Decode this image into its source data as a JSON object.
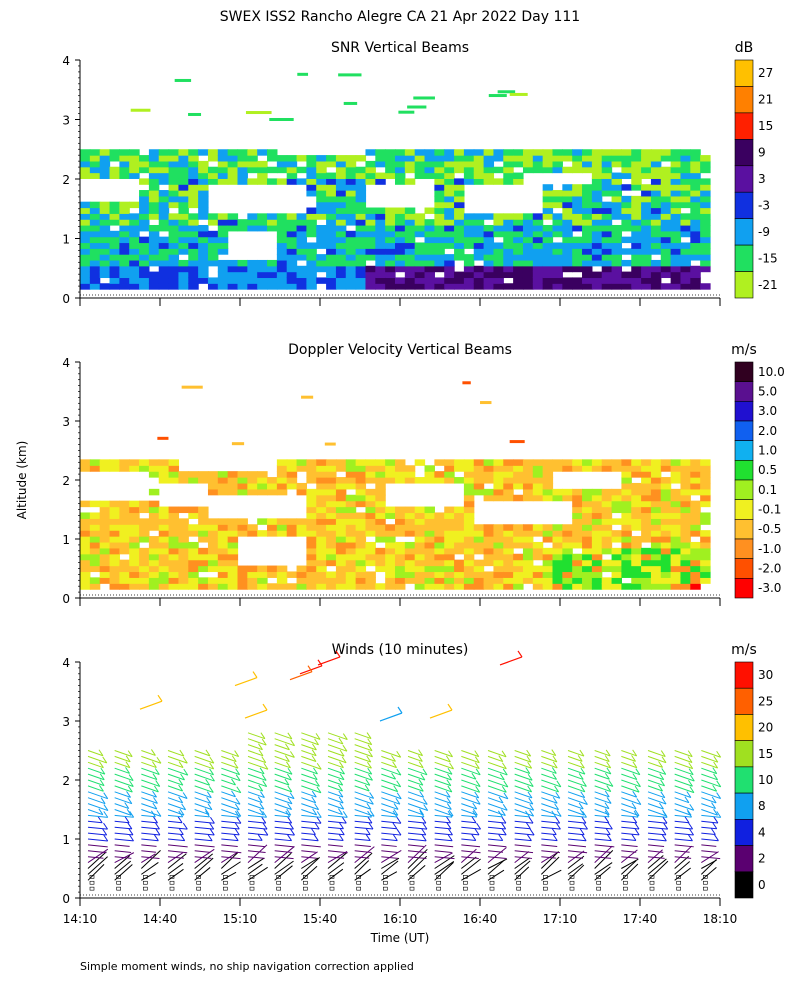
{
  "title": "SWEX ISS2 Rancho Alegre CA  21 Apr 2022 Day 111",
  "ylabel": "Altitude (km)",
  "xlabel": "Time (UT)",
  "footnote": "Simple moment winds, no ship navigation correction applied",
  "time_ticks": [
    "14:10",
    "14:40",
    "15:10",
    "15:40",
    "16:10",
    "16:40",
    "17:10",
    "17:40",
    "18:10"
  ],
  "panels": [
    {
      "title": "SNR Vertical Beams",
      "unit": "dB",
      "colorbar_labels": [
        "27",
        "21",
        "15",
        "9",
        "3",
        "-3",
        "-9",
        "-15",
        "-21"
      ],
      "colorbar_colors": [
        "#ffc000",
        "#ff8000",
        "#ff2000",
        "#3a0060",
        "#5a10a0",
        "#1030e0",
        "#10a0f0",
        "#20e060",
        "#b0f020"
      ]
    },
    {
      "title": "Doppler Velocity Vertical Beams",
      "unit": "m/s",
      "colorbar_labels": [
        "10.0",
        "5.0",
        "3.0",
        "2.0",
        "1.0",
        "0.5",
        "0.1",
        "-0.1",
        "-0.5",
        "-1.0",
        "-2.0",
        "-3.0"
      ],
      "colorbar_colors": [
        "#300020",
        "#5a1090",
        "#2010d0",
        "#1060f0",
        "#10b0f0",
        "#20e030",
        "#a0f020",
        "#f0f020",
        "#ffc030",
        "#ff9020",
        "#ff5000",
        "#ff0000"
      ]
    },
    {
      "title": "Winds (10 minutes)",
      "unit": "m/s",
      "colorbar_labels": [
        "30",
        "25",
        "20",
        "15",
        "10",
        "8",
        "4",
        "2",
        "0"
      ],
      "colorbar_colors": [
        "#ff1000",
        "#ff6000",
        "#ffc000",
        "#a0e020",
        "#20e070",
        "#10a0f0",
        "#1020e0",
        "#5a0070",
        "#000000"
      ]
    }
  ],
  "chart_data": [
    {
      "type": "heatmap",
      "title": "SNR Vertical Beams",
      "xlabel": "Time (UT)",
      "ylabel": "Altitude (km)",
      "x_range": [
        "14:10",
        "18:10"
      ],
      "ylim": [
        0,
        4
      ],
      "yticks": [
        0,
        1,
        2,
        3,
        4
      ],
      "colorbar_unit": "dB",
      "colorbar_levels": [
        -21,
        -15,
        -9,
        -3,
        3,
        9,
        15,
        21,
        27
      ],
      "data_top_km": 2.5
    },
    {
      "type": "heatmap",
      "title": "Doppler Velocity Vertical Beams",
      "xlabel": "Time (UT)",
      "ylabel": "Altitude (km)",
      "x_range": [
        "14:10",
        "18:10"
      ],
      "ylim": [
        0,
        4
      ],
      "yticks": [
        0,
        1,
        2,
        3,
        4
      ],
      "colorbar_unit": "m/s",
      "colorbar_levels": [
        -3.0,
        -2.0,
        -1.0,
        -0.5,
        -0.1,
        0.1,
        0.5,
        1.0,
        2.0,
        3.0,
        5.0,
        10.0
      ],
      "data_top_km": 2.4
    },
    {
      "type": "scatter",
      "title": "Winds (10 minutes)",
      "xlabel": "Time (UT)",
      "ylabel": "Altitude (km)",
      "x_range": [
        "14:10",
        "18:10"
      ],
      "ylim": [
        0,
        4
      ],
      "yticks": [
        0,
        1,
        2,
        3,
        4
      ],
      "colorbar_unit": "m/s",
      "colorbar_levels": [
        0,
        2,
        4,
        8,
        10,
        15,
        20,
        25,
        30
      ],
      "profile_times": [
        "14:10",
        "14:20",
        "14:30",
        "14:40",
        "14:50",
        "15:00",
        "15:10",
        "15:20",
        "15:30",
        "15:40",
        "15:50",
        "16:00",
        "16:10",
        "16:20",
        "16:30",
        "16:40",
        "16:50",
        "17:00",
        "17:10",
        "17:20",
        "17:30",
        "17:40",
        "17:50",
        "18:00"
      ]
    }
  ]
}
